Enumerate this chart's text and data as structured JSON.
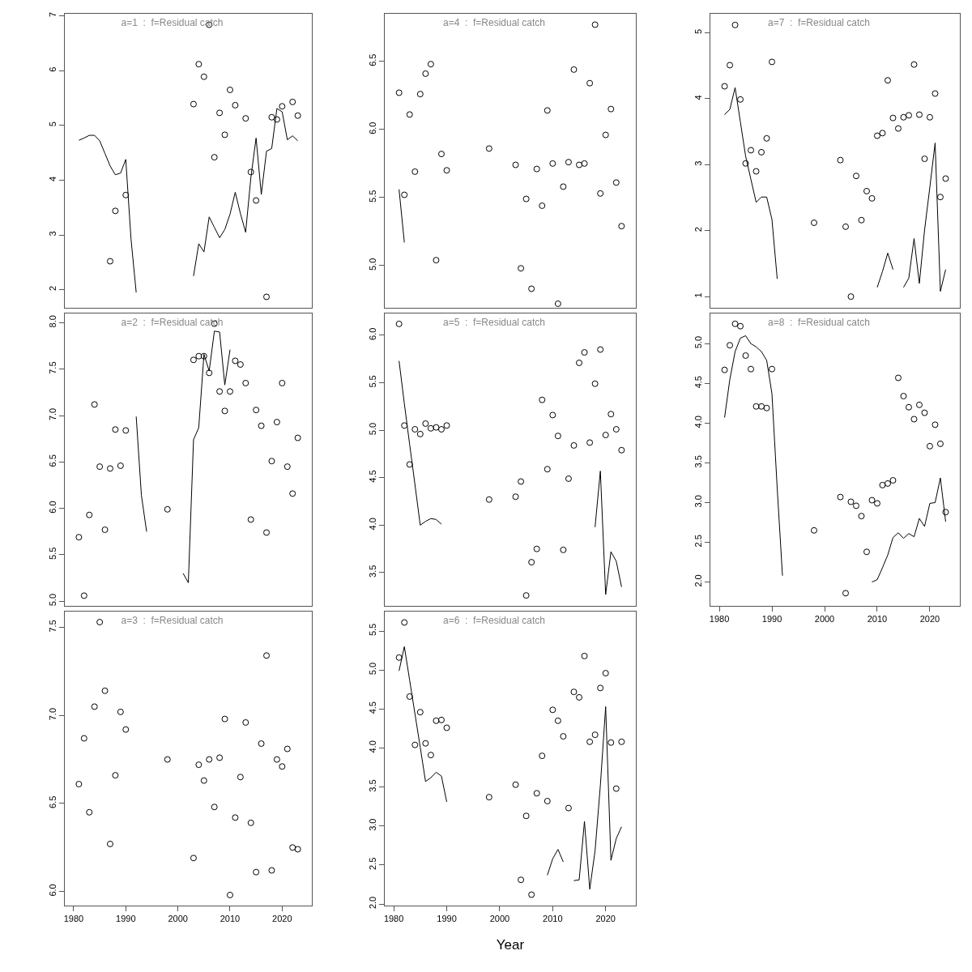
{
  "chart_data": [
    {
      "type": "scatter",
      "title": "a=1  :  f=Residual catch",
      "xlim": [
        1978.3,
        2025.7
      ],
      "xticks": [
        1980,
        1990,
        2000,
        2010,
        2020
      ],
      "ylim": [
        1.67,
        7.04
      ],
      "yticks": [
        2,
        3,
        4,
        5,
        6,
        7
      ],
      "tick_labels": "y",
      "series": [
        {
          "type": "scatter",
          "marker": "circle",
          "color": "#000000",
          "x": [
            1987,
            1988,
            1990,
            2003,
            2004,
            2005,
            2006,
            2007,
            2008,
            2009,
            2010,
            2011,
            2013,
            2014,
            2015,
            2017,
            2018,
            2019,
            2020,
            2022,
            2023
          ],
          "values": [
            2.52,
            3.44,
            3.73,
            5.39,
            6.12,
            5.89,
            6.84,
            4.42,
            5.23,
            4.83,
            5.65,
            5.37,
            5.13,
            4.15,
            3.63,
            1.87,
            5.15,
            5.11,
            5.35,
            5.43,
            5.18
          ]
        },
        {
          "type": "line",
          "color": "#000000",
          "x": [
            1981,
            1982,
            1983,
            1984,
            1985,
            1986,
            1987,
            1988,
            1989,
            1990,
            1991,
            1992,
            1993,
            1994,
            1995,
            1996,
            1997,
            1998,
            1999,
            2000,
            2001,
            2002,
            2003,
            2004,
            2005,
            2006,
            2007,
            2008,
            2009,
            2010,
            2011,
            2012,
            2013,
            2014,
            2015,
            2016,
            2017,
            2018,
            2019,
            2020,
            2021,
            2022,
            2023
          ],
          "values": [
            4.73,
            4.77,
            4.82,
            4.82,
            4.72,
            4.49,
            4.26,
            4.1,
            4.13,
            4.38,
            2.93,
            1.95,
            null,
            null,
            null,
            null,
            null,
            null,
            null,
            null,
            null,
            null,
            2.25,
            2.84,
            2.69,
            3.33,
            3.14,
            2.95,
            3.1,
            3.38,
            3.78,
            3.39,
            3.05,
            4.05,
            4.77,
            3.74,
            4.53,
            4.58,
            5.31,
            5.25,
            4.74,
            4.81,
            4.72
          ]
        }
      ]
    },
    {
      "type": "scatter",
      "title": "a=4  :  f=Residual catch",
      "xlim": [
        1978.3,
        2025.7
      ],
      "xticks": [
        1980,
        1990,
        2000,
        2010,
        2020
      ],
      "ylim": [
        4.69,
        6.85
      ],
      "yticks": [
        {
          "value": 5,
          "label": "5.0"
        },
        5.5,
        {
          "value": 6,
          "label": "6.0"
        },
        6.5
      ],
      "tick_labels": "y",
      "series": [
        {
          "type": "scatter",
          "marker": "circle",
          "color": "#000000",
          "x": [
            1981,
            1982,
            1983,
            1984,
            1985,
            1986,
            1987,
            1988,
            1989,
            1990,
            1998,
            2003,
            2004,
            2005,
            2006,
            2007,
            2008,
            2009,
            2010,
            2011,
            2012,
            2013,
            2014,
            2015,
            2016,
            2017,
            2018,
            2019,
            2020,
            2021,
            2022,
            2023
          ],
          "values": [
            6.27,
            5.52,
            6.11,
            5.69,
            6.26,
            6.41,
            6.48,
            5.04,
            5.82,
            5.7,
            5.86,
            5.74,
            4.98,
            5.49,
            4.83,
            5.71,
            5.44,
            6.14,
            5.75,
            4.72,
            5.58,
            5.76,
            6.44,
            5.74,
            5.75,
            6.34,
            6.77,
            5.53,
            5.96,
            6.15,
            5.61,
            5.29
          ]
        },
        {
          "type": "line",
          "color": "#000000",
          "x": [
            1981,
            1982
          ],
          "values": [
            5.56,
            5.17
          ]
        }
      ]
    },
    {
      "type": "scatter",
      "title": "a=7  :  f=Residual catch",
      "xlim": [
        1978.3,
        2025.7
      ],
      "xticks": [
        1980,
        1990,
        2000,
        2010,
        2020
      ],
      "ylim": [
        0.83,
        5.29
      ],
      "yticks": [
        1,
        2,
        3,
        4,
        5
      ],
      "tick_labels": "y",
      "series": [
        {
          "type": "scatter",
          "marker": "circle",
          "color": "#000000",
          "x": [
            1981,
            1982,
            1983,
            1984,
            1985,
            1986,
            1987,
            1988,
            1989,
            1990,
            1998,
            2003,
            2004,
            2005,
            2006,
            2007,
            2008,
            2009,
            2010,
            2011,
            2012,
            2013,
            2014,
            2015,
            2016,
            2017,
            2018,
            2019,
            2020,
            2021,
            2022,
            2023
          ],
          "values": [
            4.19,
            4.51,
            5.12,
            3.99,
            3.02,
            3.22,
            2.9,
            3.19,
            3.4,
            4.56,
            2.12,
            3.07,
            2.06,
            1.0,
            2.83,
            2.16,
            2.6,
            2.49,
            3.44,
            3.48,
            4.28,
            3.71,
            3.55,
            3.72,
            3.75,
            4.52,
            3.76,
            3.09,
            3.72,
            4.08,
            2.51,
            2.79
          ]
        },
        {
          "type": "line",
          "color": "#000000",
          "x": [
            1981,
            1982,
            1983,
            1984,
            1985,
            1986,
            1987,
            1988,
            1989,
            1990,
            1991,
            1992,
            1993,
            1994,
            1995,
            1996,
            1997,
            1998,
            1999,
            2000,
            2001,
            2002,
            2003,
            2004,
            2005,
            2006,
            2007,
            2008,
            2009,
            2010,
            2011,
            2012,
            2013,
            2014,
            2015,
            2016,
            2017,
            2018,
            2019,
            2020,
            2021,
            2022,
            2023
          ],
          "values": [
            3.76,
            3.84,
            4.17,
            3.65,
            3.13,
            2.78,
            2.43,
            2.51,
            2.51,
            2.17,
            1.27,
            null,
            null,
            null,
            null,
            null,
            null,
            null,
            null,
            null,
            null,
            null,
            null,
            null,
            null,
            null,
            null,
            null,
            null,
            1.14,
            1.38,
            1.66,
            1.41,
            null,
            1.14,
            1.28,
            1.88,
            1.2,
            2.01,
            2.66,
            3.33,
            1.08,
            1.41
          ]
        }
      ]
    },
    {
      "type": "scatter",
      "title": "a=2  :  f=Residual catch",
      "xlim": [
        1978.3,
        2025.7
      ],
      "xticks": [
        1980,
        1990,
        2000,
        2010,
        2020
      ],
      "ylim": [
        4.95,
        8.1
      ],
      "yticks": [
        {
          "value": 5,
          "label": "5.0"
        },
        5.5,
        {
          "value": 6,
          "label": "6.0"
        },
        6.5,
        {
          "value": 7,
          "label": "7.0"
        },
        7.5,
        {
          "value": 8,
          "label": "8.0"
        }
      ],
      "tick_labels": "y",
      "series": [
        {
          "type": "scatter",
          "marker": "circle",
          "color": "#000000",
          "x": [
            1981,
            1982,
            1983,
            1984,
            1985,
            1986,
            1987,
            1988,
            1989,
            1990,
            1998,
            2003,
            2004,
            2005,
            2006,
            2007,
            2008,
            2009,
            2010,
            2011,
            2012,
            2013,
            2014,
            2015,
            2016,
            2017,
            2018,
            2019,
            2020,
            2021,
            2022,
            2023
          ],
          "values": [
            5.69,
            5.06,
            5.93,
            7.12,
            6.45,
            5.77,
            6.43,
            6.85,
            6.46,
            6.84,
            5.99,
            7.6,
            7.64,
            7.64,
            7.46,
            7.99,
            7.26,
            7.05,
            7.26,
            7.59,
            7.55,
            7.35,
            5.88,
            7.06,
            6.89,
            5.74,
            6.51,
            6.93,
            7.35,
            6.45,
            6.16,
            6.76
          ]
        },
        {
          "type": "line",
          "color": "#000000",
          "x": [
            1992,
            1993,
            1994,
            1995,
            1996,
            1997,
            1998,
            1999,
            2000,
            2001,
            2002,
            2003,
            2004,
            2005,
            2006,
            2007,
            2008,
            2009,
            2010
          ],
          "values": [
            6.99,
            6.14,
            5.75,
            null,
            null,
            null,
            null,
            null,
            null,
            5.3,
            5.2,
            6.74,
            6.87,
            7.66,
            7.48,
            7.91,
            7.9,
            7.33,
            7.71
          ]
        }
      ]
    },
    {
      "type": "scatter",
      "title": "a=5  :  f=Residual catch",
      "xlim": [
        1978.3,
        2025.7
      ],
      "xticks": [
        1980,
        1990,
        2000,
        2010,
        2020
      ],
      "ylim": [
        3.15,
        6.23
      ],
      "yticks": [
        3.5,
        {
          "value": 4,
          "label": "4.0"
        },
        4.5,
        {
          "value": 5,
          "label": "5.0"
        },
        5.5,
        {
          "value": 6,
          "label": "6.0"
        }
      ],
      "tick_labels": "y",
      "series": [
        {
          "type": "scatter",
          "marker": "circle",
          "color": "#000000",
          "x": [
            1981,
            1982,
            1983,
            1984,
            1985,
            1986,
            1987,
            1988,
            1989,
            1990,
            1998,
            2003,
            2004,
            2005,
            2006,
            2007,
            2008,
            2009,
            2010,
            2011,
            2012,
            2013,
            2014,
            2015,
            2016,
            2017,
            2018,
            2019,
            2020,
            2021,
            2022,
            2023
          ],
          "values": [
            6.12,
            5.05,
            4.64,
            5.01,
            4.96,
            5.07,
            5.02,
            5.03,
            5.01,
            5.05,
            4.27,
            4.3,
            4.46,
            3.26,
            3.61,
            3.75,
            5.32,
            4.59,
            5.16,
            4.94,
            3.74,
            4.49,
            4.84,
            5.71,
            5.82,
            4.87,
            5.49,
            5.85,
            4.95,
            5.17,
            5.01,
            4.79
          ]
        },
        {
          "type": "line",
          "color": "#000000",
          "x": [
            1981,
            1982,
            1983,
            1984,
            1985,
            1986,
            1987,
            1988,
            1989,
            1990,
            1991,
            1992,
            1993,
            1994,
            1995,
            1996,
            1997,
            1998,
            1999,
            2000,
            2001,
            2002,
            2003,
            2004,
            2005,
            2006,
            2007,
            2008,
            2009,
            2010,
            2011,
            2012,
            2013,
            2014,
            2015,
            2016,
            2017,
            2018,
            2019,
            2020,
            2021,
            2022,
            2023
          ],
          "values": [
            5.73,
            5.28,
            4.85,
            4.43,
            4.0,
            4.04,
            4.07,
            4.06,
            4.01,
            null,
            null,
            null,
            null,
            null,
            null,
            null,
            null,
            null,
            null,
            null,
            null,
            null,
            null,
            null,
            null,
            null,
            null,
            null,
            null,
            null,
            null,
            null,
            null,
            null,
            null,
            null,
            null,
            3.98,
            4.57,
            3.27,
            3.72,
            3.62,
            3.35
          ]
        }
      ]
    },
    {
      "type": "scatter",
      "title": "a=8  :  f=Residual catch",
      "xlim": [
        1978.3,
        2025.7
      ],
      "ylim": [
        1.7,
        5.38
      ],
      "xticks": [
        1980,
        1990,
        2000,
        2010,
        2020
      ],
      "yticks": [
        {
          "value": 2,
          "label": "2.0"
        },
        2.5,
        {
          "value": 3,
          "label": "3.0"
        },
        3.5,
        {
          "value": 4,
          "label": "4.0"
        },
        4.5,
        {
          "value": 5,
          "label": "5.0"
        }
      ],
      "series": [
        {
          "type": "scatter",
          "marker": "circle",
          "color": "#000000",
          "x": [
            1981,
            1982,
            1983,
            1984,
            1985,
            1986,
            1987,
            1988,
            1989,
            1990,
            1998,
            2003,
            2004,
            2005,
            2006,
            2007,
            2008,
            2009,
            2010,
            2011,
            2012,
            2013,
            2014,
            2015,
            2016,
            2017,
            2018,
            2019,
            2020,
            2021,
            2022,
            2023
          ],
          "values": [
            4.67,
            4.98,
            5.25,
            5.22,
            4.85,
            4.68,
            4.21,
            4.21,
            4.19,
            4.68,
            2.65,
            3.07,
            1.86,
            3.01,
            2.96,
            2.83,
            2.38,
            3.03,
            2.99,
            3.22,
            3.24,
            3.28,
            4.57,
            4.34,
            4.2,
            4.05,
            4.23,
            4.13,
            3.71,
            3.98,
            3.74,
            2.88
          ]
        },
        {
          "type": "line",
          "color": "#000000",
          "x": [
            1981,
            1982,
            1983,
            1984,
            1985,
            1986,
            1987,
            1988,
            1989,
            1990,
            1991,
            1992,
            1993,
            1994,
            1995,
            1996,
            1997,
            1998,
            1999,
            2000,
            2001,
            2002,
            2003,
            2004,
            2005,
            2006,
            2007,
            2008,
            2009,
            2010,
            2011,
            2012,
            2013,
            2014,
            2015,
            2016,
            2017,
            2018,
            2019,
            2020,
            2021,
            2022,
            2023
          ],
          "values": [
            4.07,
            4.55,
            4.9,
            5.07,
            5.1,
            5.0,
            4.96,
            4.9,
            4.79,
            4.37,
            3.18,
            2.08,
            null,
            null,
            null,
            null,
            null,
            null,
            null,
            null,
            null,
            null,
            null,
            null,
            null,
            null,
            null,
            null,
            2.0,
            2.03,
            2.18,
            2.34,
            2.56,
            2.62,
            2.55,
            2.61,
            2.57,
            2.8,
            2.7,
            2.99,
            3.0,
            3.31,
            2.76
          ]
        }
      ]
    },
    {
      "type": "scatter",
      "title": "a=3  :  f=Residual catch",
      "xlim": [
        1978.3,
        2025.7
      ],
      "ylim": [
        5.92,
        7.59
      ],
      "xticks": [
        1980,
        1990,
        2000,
        2010,
        2020
      ],
      "yticks": [
        {
          "value": 6,
          "label": "6.0"
        },
        6.5,
        {
          "value": 7,
          "label": "7.0"
        },
        7.5
      ],
      "series": [
        {
          "type": "scatter",
          "marker": "circle",
          "color": "#000000",
          "x": [
            1981,
            1982,
            1983,
            1984,
            1985,
            1986,
            1987,
            1988,
            1989,
            1990,
            1998,
            2003,
            2004,
            2005,
            2006,
            2007,
            2008,
            2009,
            2010,
            2011,
            2012,
            2013,
            2014,
            2015,
            2016,
            2017,
            2018,
            2019,
            2020,
            2021,
            2022,
            2023
          ],
          "values": [
            6.61,
            6.87,
            6.45,
            7.05,
            7.53,
            7.14,
            6.27,
            6.66,
            7.02,
            6.92,
            6.75,
            6.19,
            6.72,
            6.63,
            6.75,
            6.48,
            6.76,
            6.98,
            5.98,
            6.42,
            6.65,
            6.96,
            6.39,
            6.11,
            6.84,
            7.34,
            6.12,
            6.75,
            6.71,
            6.81,
            6.25,
            6.24
          ]
        }
      ]
    },
    {
      "type": "scatter",
      "title": "a=6  :  f=Residual catch",
      "xlabel": "Year",
      "xlim": [
        1978.3,
        2025.7
      ],
      "ylim": [
        1.98,
        5.75
      ],
      "xticks": [
        1980,
        1990,
        2000,
        2010,
        2020
      ],
      "yticks": [
        {
          "value": 2,
          "label": "2.0"
        },
        2.5,
        {
          "value": 3,
          "label": "3.0"
        },
        3.5,
        {
          "value": 4,
          "label": "4.0"
        },
        4.5,
        {
          "value": 5,
          "label": "5.0"
        },
        5.5
      ],
      "series": [
        {
          "type": "scatter",
          "marker": "circle",
          "color": "#000000",
          "x": [
            1981,
            1982,
            1983,
            1984,
            1985,
            1986,
            1987,
            1988,
            1989,
            1990,
            1998,
            2003,
            2004,
            2005,
            2006,
            2007,
            2008,
            2009,
            2010,
            2011,
            2012,
            2013,
            2014,
            2015,
            2016,
            2017,
            2018,
            2019,
            2020,
            2021,
            2022,
            2023
          ],
          "values": [
            5.16,
            5.61,
            4.66,
            4.04,
            4.46,
            4.06,
            3.91,
            4.35,
            4.36,
            4.26,
            3.37,
            3.53,
            2.31,
            3.13,
            2.12,
            3.42,
            3.9,
            3.32,
            4.49,
            4.35,
            4.15,
            3.23,
            4.72,
            4.65,
            5.18,
            4.08,
            4.17,
            4.77,
            4.96,
            4.07,
            3.48,
            4.08
          ]
        },
        {
          "type": "line",
          "color": "#000000",
          "x": [
            1981,
            1982,
            1983,
            1984,
            1985,
            1986,
            1987,
            1988,
            1989,
            1990,
            1991,
            1992,
            1993,
            1994,
            1995,
            1996,
            1997,
            1998,
            1999,
            2000,
            2001,
            2002,
            2003,
            2004,
            2005,
            2006,
            2007,
            2008,
            2009,
            2010,
            2011,
            2012,
            2013,
            2014,
            2015,
            2016,
            2017,
            2018,
            2019,
            2020,
            2021,
            2022,
            2023
          ],
          "values": [
            4.99,
            5.3,
            4.87,
            4.44,
            4.01,
            3.57,
            3.62,
            3.69,
            3.64,
            3.31,
            null,
            null,
            null,
            null,
            null,
            null,
            null,
            null,
            null,
            null,
            null,
            null,
            null,
            null,
            null,
            null,
            null,
            null,
            2.37,
            2.58,
            2.7,
            2.54,
            null,
            2.3,
            2.31,
            3.06,
            2.19,
            2.68,
            3.52,
            4.53,
            2.56,
            2.84,
            2.99
          ]
        }
      ]
    }
  ]
}
